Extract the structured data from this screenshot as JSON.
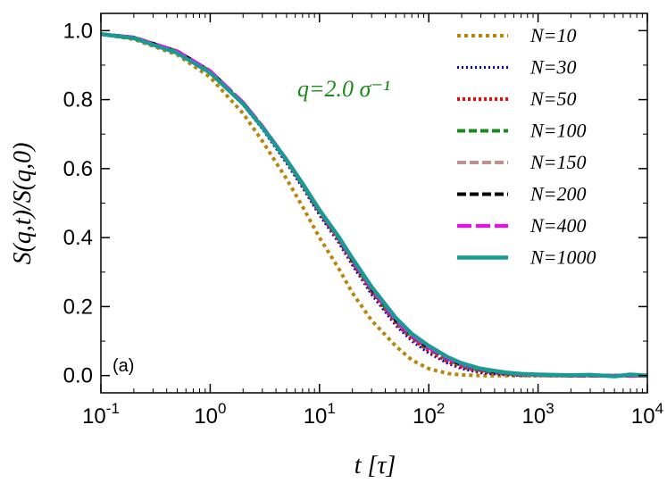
{
  "chart_data": {
    "type": "line",
    "title": "",
    "xlabel": "t [τ]",
    "ylabel": "S(q,t)/S(q,0)",
    "xscale": "log",
    "xlim": [
      0.1,
      10000
    ],
    "ylim": [
      -0.05,
      1.05
    ],
    "x_ticks": [
      {
        "value": 0.1,
        "base": "10",
        "exp": "-1"
      },
      {
        "value": 1,
        "base": "10",
        "exp": "0"
      },
      {
        "value": 10,
        "base": "10",
        "exp": "1"
      },
      {
        "value": 100,
        "base": "10",
        "exp": "2"
      },
      {
        "value": 1000,
        "base": "10",
        "exp": "3"
      },
      {
        "value": 10000,
        "base": "10",
        "exp": "4"
      }
    ],
    "y_ticks": [
      {
        "value": 0.0,
        "label": "0.0"
      },
      {
        "value": 0.2,
        "label": "0.2"
      },
      {
        "value": 0.4,
        "label": "0.4"
      },
      {
        "value": 0.6,
        "label": "0.6"
      },
      {
        "value": 0.8,
        "label": "0.8"
      },
      {
        "value": 1.0,
        "label": "1.0"
      }
    ],
    "annotations": {
      "q_label": "q=2.0 σ⁻¹",
      "q_color": "#1a8a1a",
      "panel_label": "(a)"
    },
    "legend_location": "top-right",
    "x": [
      0.1,
      0.2,
      0.5,
      1,
      2,
      3,
      5,
      7,
      10,
      15,
      20,
      30,
      50,
      70,
      100,
      150,
      200,
      300,
      500,
      700,
      1000,
      2000,
      3000,
      5000,
      7000,
      10000
    ],
    "series": [
      {
        "name": "N=10",
        "label": "N=10",
        "color": "#b8860b",
        "dash": "4,4",
        "width": 4,
        "values": [
          0.99,
          0.975,
          0.93,
          0.865,
          0.76,
          0.68,
          0.57,
          0.49,
          0.4,
          0.31,
          0.24,
          0.16,
          0.085,
          0.045,
          0.02,
          0.006,
          0.002,
          0.0,
          0.0,
          0.0,
          0.0,
          0.0,
          0.0,
          0.0,
          0.0,
          0.0
        ]
      },
      {
        "name": "N=30",
        "label": "N=30",
        "color": "#0000cd",
        "dash": "2,3",
        "width": 3,
        "values": [
          0.99,
          0.978,
          0.938,
          0.88,
          0.785,
          0.715,
          0.615,
          0.545,
          0.465,
          0.385,
          0.32,
          0.235,
          0.145,
          0.1,
          0.065,
          0.035,
          0.02,
          0.008,
          0.002,
          0.0,
          0.0,
          0.0,
          0.0,
          0.0,
          0.0,
          0.0
        ]
      },
      {
        "name": "N=50",
        "label": "N=50",
        "color": "#ff0000",
        "dash": "3,3",
        "width": 4,
        "values": [
          0.99,
          0.98,
          0.94,
          0.882,
          0.79,
          0.72,
          0.622,
          0.552,
          0.472,
          0.393,
          0.328,
          0.243,
          0.152,
          0.107,
          0.072,
          0.04,
          0.025,
          0.012,
          0.004,
          0.001,
          0.0,
          0.0,
          0.0,
          0.0,
          0.0,
          0.0
        ]
      },
      {
        "name": "N=100",
        "label": "N=100",
        "color": "#1a8a1a",
        "dash": "9,4",
        "width": 4,
        "values": [
          0.99,
          0.98,
          0.94,
          0.882,
          0.79,
          0.721,
          0.623,
          0.554,
          0.475,
          0.397,
          0.333,
          0.248,
          0.157,
          0.112,
          0.077,
          0.045,
          0.029,
          0.015,
          0.006,
          0.003,
          0.001,
          0.0,
          0.0,
          0.0,
          0.0,
          0.0
        ]
      },
      {
        "name": "N=150",
        "label": "N=150",
        "color": "#c09090",
        "dash": "10,4",
        "width": 4,
        "values": [
          0.99,
          0.98,
          0.94,
          0.882,
          0.791,
          0.722,
          0.624,
          0.555,
          0.476,
          0.398,
          0.334,
          0.25,
          0.159,
          0.114,
          0.079,
          0.047,
          0.031,
          0.016,
          0.007,
          0.003,
          0.001,
          0.0,
          0.0,
          0.0,
          0.0,
          0.0
        ]
      },
      {
        "name": "N=200",
        "label": "N=200",
        "color": "#000000",
        "dash": "10,4",
        "width": 4,
        "values": [
          0.99,
          0.98,
          0.94,
          0.882,
          0.791,
          0.722,
          0.625,
          0.556,
          0.477,
          0.399,
          0.335,
          0.251,
          0.16,
          0.115,
          0.08,
          0.048,
          0.032,
          0.017,
          0.007,
          0.004,
          0.002,
          0.0,
          0.0,
          0.0,
          0.0,
          0.0
        ]
      },
      {
        "name": "N=400",
        "label": "N=400",
        "color": "#ff00ff",
        "dash": "16,5",
        "width": 4,
        "values": [
          0.99,
          0.98,
          0.94,
          0.883,
          0.792,
          0.723,
          0.626,
          0.557,
          0.478,
          0.4,
          0.336,
          0.252,
          0.161,
          0.116,
          0.081,
          0.049,
          0.033,
          0.018,
          0.008,
          0.004,
          0.002,
          0.0,
          0.0,
          0.0,
          0.0,
          0.0
        ]
      },
      {
        "name": "N=1000",
        "label": "N=1000",
        "color": "#1a9a95",
        "dash": "",
        "width": 4.5,
        "values": [
          0.99,
          0.978,
          0.935,
          0.878,
          0.788,
          0.72,
          0.625,
          0.557,
          0.48,
          0.402,
          0.34,
          0.257,
          0.167,
          0.121,
          0.086,
          0.053,
          0.036,
          0.02,
          0.009,
          0.005,
          0.003,
          0.001,
          0.002,
          -0.002,
          0.003,
          0.0
        ]
      }
    ]
  }
}
